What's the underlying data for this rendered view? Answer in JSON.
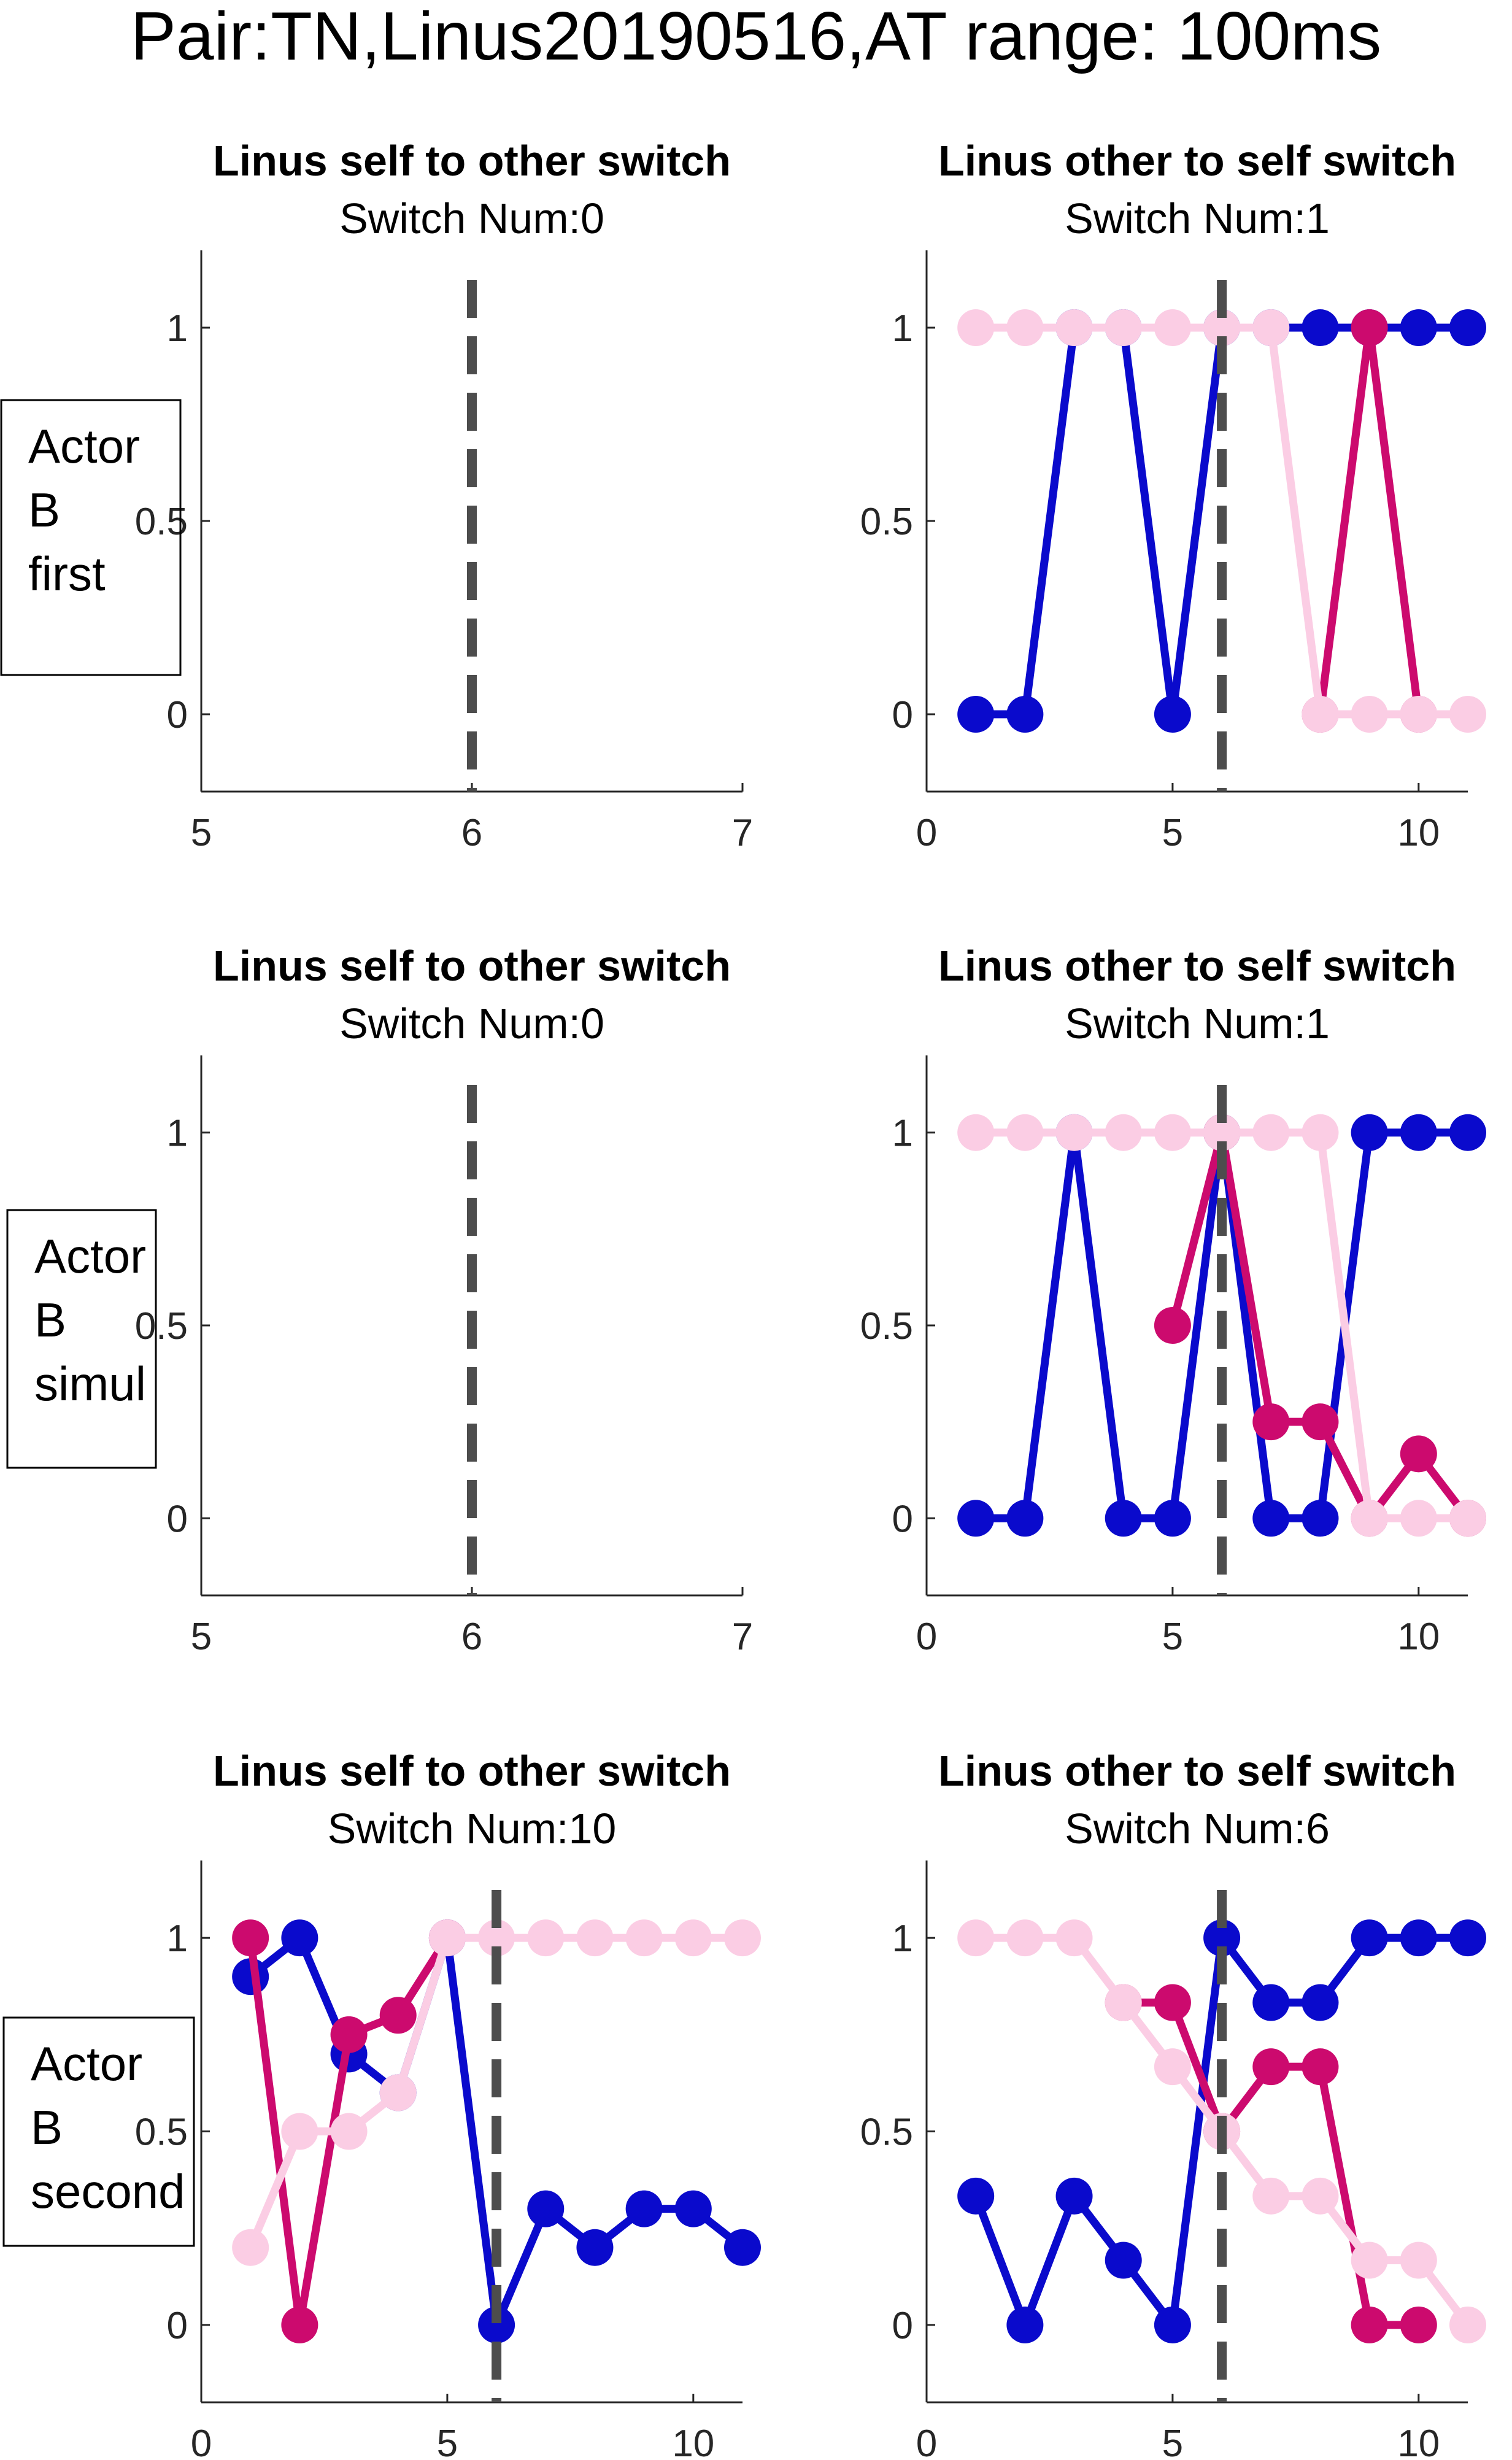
{
  "figure": {
    "suptitle": "Pair:TN,Linus20190516,AT range: 100ms",
    "colors": {
      "blue": "#0a0acc",
      "magenta": "#cc0a6e",
      "pink": "#fbcde4",
      "switch_line": "#4d4d4d"
    }
  },
  "chart_data": [
    {
      "type": "line",
      "title": "Linus self to other switch",
      "subtitle": "Switch Num:0",
      "row_label": [
        "Actor",
        "B",
        "first"
      ],
      "xlim": [
        5,
        7
      ],
      "ylim": [
        -0.2,
        1.2
      ],
      "xticks": [
        5,
        6,
        7
      ],
      "yticks": [
        0,
        0.5,
        1
      ],
      "switch_x": 6,
      "series": []
    },
    {
      "type": "line",
      "title": "Linus other to self switch",
      "subtitle": "Switch Num:1",
      "xlim": [
        0,
        11
      ],
      "ylim": [
        -0.2,
        1.2
      ],
      "xticks": [
        0,
        5,
        10
      ],
      "yticks": [
        0,
        0.5,
        1
      ],
      "switch_x": 6,
      "series": [
        {
          "color": "blue",
          "x": [
            1,
            2,
            3,
            4,
            5,
            6,
            7,
            8,
            9,
            10,
            11
          ],
          "y": [
            0,
            0,
            1,
            1,
            0,
            1,
            1,
            1,
            1,
            1,
            1
          ]
        },
        {
          "color": "magenta",
          "x": [
            8,
            9,
            10
          ],
          "y": [
            0,
            1,
            0
          ]
        },
        {
          "color": "pink",
          "x": [
            1,
            2,
            3,
            4,
            5,
            6,
            7,
            8,
            9,
            10,
            11
          ],
          "y": [
            1,
            1,
            1,
            1,
            1,
            1,
            1,
            0,
            0,
            0,
            0
          ]
        }
      ]
    },
    {
      "type": "line",
      "title": "Linus self to other switch",
      "subtitle": "Switch Num:0",
      "row_label": [
        "Actor",
        "B",
        "simul"
      ],
      "xlim": [
        5,
        7
      ],
      "ylim": [
        -0.2,
        1.2
      ],
      "xticks": [
        5,
        6,
        7
      ],
      "yticks": [
        0,
        0.5,
        1
      ],
      "switch_x": 6,
      "series": []
    },
    {
      "type": "line",
      "title": "Linus other to self switch",
      "subtitle": "Switch Num:1",
      "xlim": [
        0,
        11
      ],
      "ylim": [
        -0.2,
        1.2
      ],
      "xticks": [
        0,
        5,
        10
      ],
      "yticks": [
        0,
        0.5,
        1
      ],
      "switch_x": 6,
      "series": [
        {
          "color": "blue",
          "x": [
            1,
            2,
            3,
            4,
            5,
            6,
            7,
            8,
            9,
            10,
            11
          ],
          "y": [
            0,
            0,
            1,
            0,
            0,
            1,
            0,
            0,
            1,
            1,
            1
          ]
        },
        {
          "color": "magenta",
          "x": [
            5,
            6,
            7,
            8,
            9,
            10,
            11
          ],
          "y": [
            0.5,
            1,
            0.25,
            0.25,
            0,
            0.167,
            0
          ]
        },
        {
          "color": "pink",
          "x": [
            1,
            2,
            3,
            4,
            5,
            6,
            7,
            8,
            9,
            10,
            11
          ],
          "y": [
            1,
            1,
            1,
            1,
            1,
            1,
            1,
            1,
            0,
            0,
            0
          ]
        }
      ]
    },
    {
      "type": "line",
      "title": "Linus self to other switch",
      "subtitle": "Switch Num:10",
      "row_label": [
        "Actor",
        "B",
        "second"
      ],
      "xlim": [
        0,
        11
      ],
      "ylim": [
        -0.2,
        1.2
      ],
      "xticks": [
        0,
        5,
        10
      ],
      "yticks": [
        0,
        0.5,
        1
      ],
      "switch_x": 6,
      "series": [
        {
          "color": "blue",
          "x": [
            1,
            2,
            3,
            4,
            5,
            6,
            7,
            8,
            9,
            10,
            11
          ],
          "y": [
            0.9,
            1,
            0.7,
            0.6,
            1,
            0,
            0.3,
            0.2,
            0.3,
            0.3,
            0.2
          ]
        },
        {
          "color": "magenta",
          "x": [
            1,
            2,
            3,
            4,
            5
          ],
          "y": [
            1,
            0,
            0.75,
            0.8,
            1
          ]
        },
        {
          "color": "pink",
          "x": [
            1,
            2,
            3,
            4,
            5,
            6,
            7,
            8,
            9,
            10,
            11
          ],
          "y": [
            0.2,
            0.5,
            0.5,
            0.6,
            1,
            1,
            1,
            1,
            1,
            1,
            1
          ]
        }
      ]
    },
    {
      "type": "line",
      "title": "Linus other to self switch",
      "subtitle": "Switch Num:6",
      "xlim": [
        0,
        11
      ],
      "ylim": [
        -0.2,
        1.2
      ],
      "xticks": [
        0,
        5,
        10
      ],
      "yticks": [
        0,
        0.5,
        1
      ],
      "switch_x": 6,
      "series": [
        {
          "color": "blue",
          "x": [
            1,
            2,
            3,
            4,
            5,
            6,
            7,
            8,
            9,
            10,
            11
          ],
          "y": [
            0.333,
            0,
            0.333,
            0.167,
            0,
            1,
            0.833,
            0.833,
            1,
            1,
            1
          ]
        },
        {
          "color": "magenta",
          "x": [
            4,
            5,
            6,
            7,
            8,
            9,
            10
          ],
          "y": [
            0.833,
            0.833,
            0.5,
            0.667,
            0.667,
            0,
            0
          ]
        },
        {
          "color": "pink",
          "x": [
            1,
            2,
            3,
            4,
            5,
            6,
            7,
            8,
            9,
            10,
            11
          ],
          "y": [
            1,
            1,
            1,
            0.833,
            0.667,
            0.5,
            0.333,
            0.333,
            0.167,
            0.167,
            0
          ]
        }
      ]
    }
  ]
}
